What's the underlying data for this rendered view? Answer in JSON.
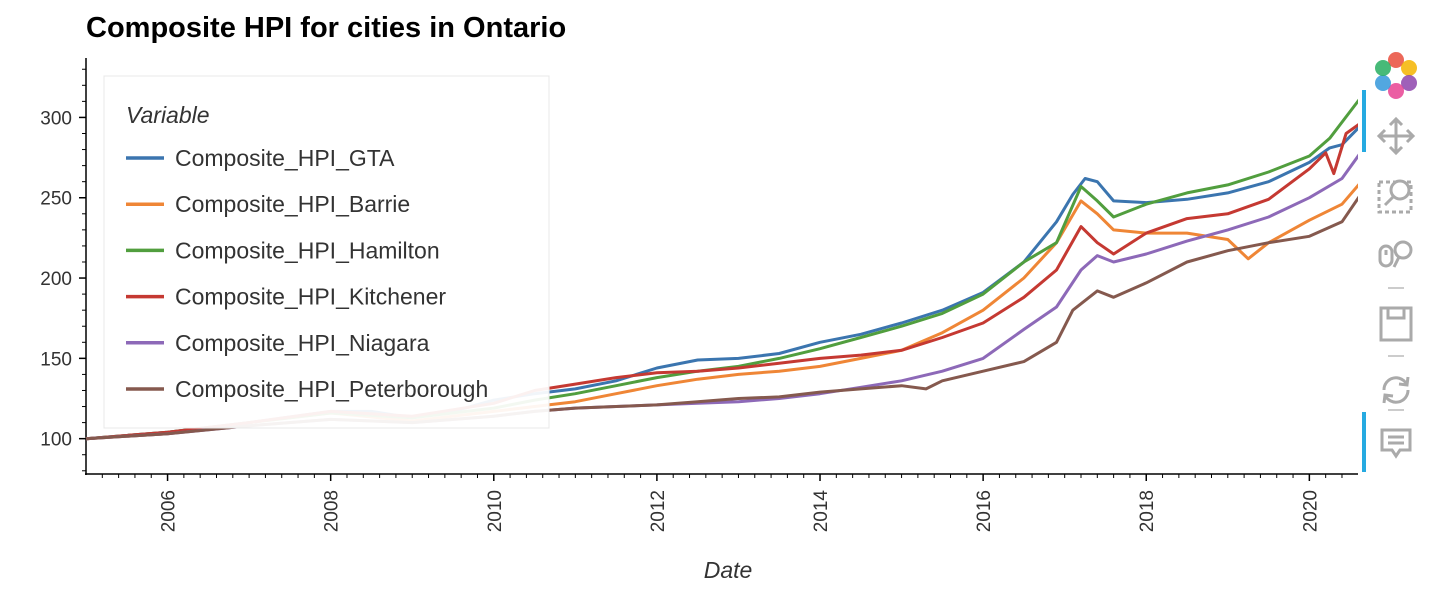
{
  "chart_data": {
    "type": "line",
    "title": "Composite HPI for cities in Ontario",
    "xlabel": "Date",
    "ylabel": "",
    "xlim": [
      2005.0,
      2020.67
    ],
    "ylim": [
      78,
      337
    ],
    "x_ticks": [
      "2006",
      "2008",
      "2010",
      "2012",
      "2014",
      "2016",
      "2018",
      "2020"
    ],
    "y_ticks": [
      "100",
      "150",
      "200",
      "250",
      "300"
    ],
    "legend": {
      "title": "Variable",
      "placement": "top-left"
    },
    "grid": false,
    "series": [
      {
        "name": "Composite_HPI_GTA",
        "color": "#3b75af",
        "points": [
          [
            2005.0,
            100
          ],
          [
            2006.0,
            104
          ],
          [
            2007.0,
            110
          ],
          [
            2008.0,
            117
          ],
          [
            2008.5,
            117
          ],
          [
            2009.0,
            113
          ],
          [
            2009.5,
            117
          ],
          [
            2010.0,
            124
          ],
          [
            2010.5,
            128
          ],
          [
            2011.0,
            131
          ],
          [
            2011.5,
            136
          ],
          [
            2012.0,
            144
          ],
          [
            2012.5,
            149
          ],
          [
            2013.0,
            150
          ],
          [
            2013.5,
            153
          ],
          [
            2014.0,
            160
          ],
          [
            2014.5,
            165
          ],
          [
            2015.0,
            172
          ],
          [
            2015.5,
            180
          ],
          [
            2016.0,
            191
          ],
          [
            2016.5,
            210
          ],
          [
            2016.9,
            235
          ],
          [
            2017.1,
            252
          ],
          [
            2017.25,
            262
          ],
          [
            2017.4,
            260
          ],
          [
            2017.6,
            248
          ],
          [
            2018.0,
            247
          ],
          [
            2018.5,
            249
          ],
          [
            2019.0,
            253
          ],
          [
            2019.5,
            260
          ],
          [
            2020.0,
            272
          ],
          [
            2020.25,
            281
          ],
          [
            2020.4,
            283
          ],
          [
            2020.67,
            297
          ]
        ]
      },
      {
        "name": "Composite_HPI_Barrie",
        "color": "#ef8636",
        "points": [
          [
            2005.0,
            100
          ],
          [
            2006.0,
            103
          ],
          [
            2007.0,
            110
          ],
          [
            2008.0,
            116
          ],
          [
            2009.0,
            111
          ],
          [
            2010.0,
            117
          ],
          [
            2010.5,
            120
          ],
          [
            2011.0,
            123
          ],
          [
            2011.5,
            128
          ],
          [
            2012.0,
            133
          ],
          [
            2012.5,
            137
          ],
          [
            2013.0,
            140
          ],
          [
            2013.5,
            142
          ],
          [
            2014.0,
            145
          ],
          [
            2014.5,
            150
          ],
          [
            2015.0,
            155
          ],
          [
            2015.5,
            166
          ],
          [
            2016.0,
            180
          ],
          [
            2016.5,
            200
          ],
          [
            2016.9,
            222
          ],
          [
            2017.2,
            248
          ],
          [
            2017.4,
            240
          ],
          [
            2017.6,
            230
          ],
          [
            2018.0,
            228
          ],
          [
            2018.5,
            228
          ],
          [
            2019.0,
            224
          ],
          [
            2019.25,
            212
          ],
          [
            2019.5,
            222
          ],
          [
            2020.0,
            236
          ],
          [
            2020.4,
            246
          ],
          [
            2020.67,
            262
          ]
        ]
      },
      {
        "name": "Composite_HPI_Hamilton",
        "color": "#519e3e",
        "points": [
          [
            2005.0,
            100
          ],
          [
            2006.0,
            104
          ],
          [
            2007.0,
            110
          ],
          [
            2008.0,
            116
          ],
          [
            2009.0,
            113
          ],
          [
            2010.0,
            119
          ],
          [
            2010.5,
            124
          ],
          [
            2011.0,
            128
          ],
          [
            2011.5,
            133
          ],
          [
            2012.0,
            138
          ],
          [
            2012.5,
            142
          ],
          [
            2013.0,
            145
          ],
          [
            2013.5,
            150
          ],
          [
            2014.0,
            156
          ],
          [
            2014.5,
            163
          ],
          [
            2015.0,
            170
          ],
          [
            2015.5,
            178
          ],
          [
            2016.0,
            190
          ],
          [
            2016.5,
            210
          ],
          [
            2016.9,
            222
          ],
          [
            2017.2,
            257
          ],
          [
            2017.4,
            248
          ],
          [
            2017.6,
            238
          ],
          [
            2018.0,
            246
          ],
          [
            2018.5,
            253
          ],
          [
            2019.0,
            258
          ],
          [
            2019.5,
            266
          ],
          [
            2020.0,
            276
          ],
          [
            2020.25,
            287
          ],
          [
            2020.67,
            315
          ]
        ]
      },
      {
        "name": "Composite_HPI_Kitchener",
        "color": "#c53932",
        "points": [
          [
            2005.0,
            100
          ],
          [
            2006.0,
            104
          ],
          [
            2007.0,
            110
          ],
          [
            2008.0,
            117
          ],
          [
            2009.0,
            114
          ],
          [
            2010.0,
            122
          ],
          [
            2010.5,
            130
          ],
          [
            2011.0,
            134
          ],
          [
            2011.5,
            138
          ],
          [
            2012.0,
            141
          ],
          [
            2012.5,
            142
          ],
          [
            2013.0,
            144
          ],
          [
            2013.5,
            147
          ],
          [
            2014.0,
            150
          ],
          [
            2014.5,
            152
          ],
          [
            2015.0,
            155
          ],
          [
            2015.5,
            163
          ],
          [
            2016.0,
            172
          ],
          [
            2016.5,
            188
          ],
          [
            2016.9,
            205
          ],
          [
            2017.2,
            232
          ],
          [
            2017.4,
            222
          ],
          [
            2017.6,
            215
          ],
          [
            2018.0,
            228
          ],
          [
            2018.5,
            237
          ],
          [
            2019.0,
            240
          ],
          [
            2019.5,
            249
          ],
          [
            2020.0,
            268
          ],
          [
            2020.2,
            278
          ],
          [
            2020.3,
            265
          ],
          [
            2020.45,
            290
          ],
          [
            2020.67,
            298
          ]
        ]
      },
      {
        "name": "Composite_HPI_Niagara",
        "color": "#8d69b8",
        "points": [
          [
            2005.0,
            100
          ],
          [
            2006.0,
            103
          ],
          [
            2007.0,
            108
          ],
          [
            2008.0,
            112
          ],
          [
            2009.0,
            110
          ],
          [
            2010.0,
            114
          ],
          [
            2010.5,
            117
          ],
          [
            2011.0,
            119
          ],
          [
            2011.5,
            120
          ],
          [
            2012.0,
            121
          ],
          [
            2012.5,
            122
          ],
          [
            2013.0,
            123
          ],
          [
            2013.5,
            125
          ],
          [
            2014.0,
            128
          ],
          [
            2014.5,
            132
          ],
          [
            2015.0,
            136
          ],
          [
            2015.5,
            142
          ],
          [
            2016.0,
            150
          ],
          [
            2016.5,
            168
          ],
          [
            2016.9,
            182
          ],
          [
            2017.2,
            205
          ],
          [
            2017.4,
            214
          ],
          [
            2017.6,
            210
          ],
          [
            2018.0,
            215
          ],
          [
            2018.5,
            223
          ],
          [
            2019.0,
            230
          ],
          [
            2019.5,
            238
          ],
          [
            2020.0,
            250
          ],
          [
            2020.4,
            262
          ],
          [
            2020.67,
            281
          ]
        ]
      },
      {
        "name": "Composite_HPI_Peterborough",
        "color": "#85594e",
        "points": [
          [
            2005.0,
            100
          ],
          [
            2006.0,
            103
          ],
          [
            2007.0,
            108
          ],
          [
            2008.0,
            112
          ],
          [
            2009.0,
            110
          ],
          [
            2010.0,
            114
          ],
          [
            2010.5,
            117
          ],
          [
            2011.0,
            119
          ],
          [
            2011.5,
            120
          ],
          [
            2012.0,
            121
          ],
          [
            2012.5,
            123
          ],
          [
            2013.0,
            125
          ],
          [
            2013.5,
            126
          ],
          [
            2014.0,
            129
          ],
          [
            2014.5,
            131
          ],
          [
            2015.0,
            133
          ],
          [
            2015.3,
            131
          ],
          [
            2015.5,
            136
          ],
          [
            2016.0,
            142
          ],
          [
            2016.5,
            148
          ],
          [
            2016.9,
            160
          ],
          [
            2017.1,
            180
          ],
          [
            2017.4,
            192
          ],
          [
            2017.6,
            188
          ],
          [
            2018.0,
            197
          ],
          [
            2018.5,
            210
          ],
          [
            2019.0,
            217
          ],
          [
            2019.5,
            222
          ],
          [
            2020.0,
            226
          ],
          [
            2020.4,
            235
          ],
          [
            2020.67,
            255
          ]
        ]
      }
    ]
  }
}
